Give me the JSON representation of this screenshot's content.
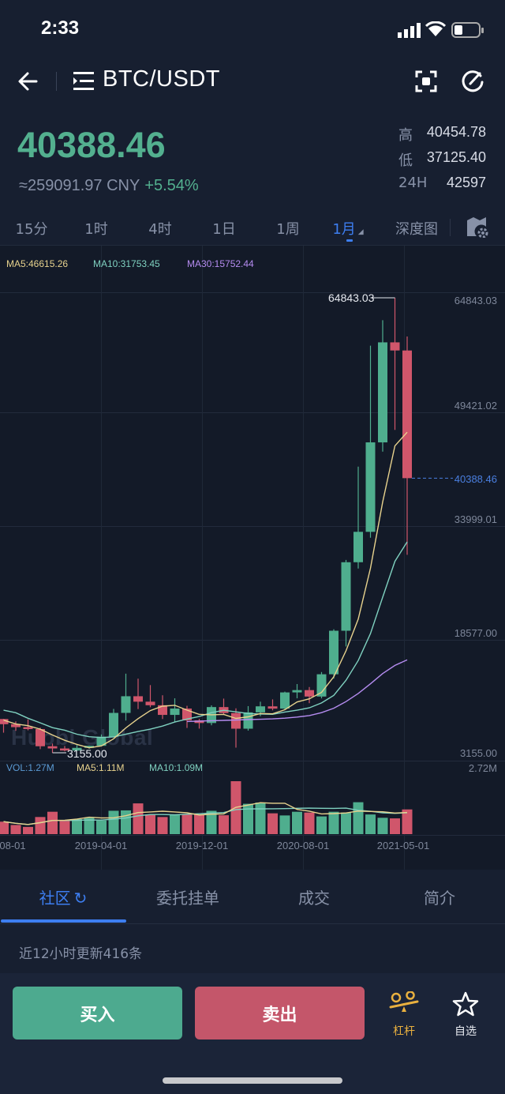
{
  "status_bar": {
    "time": "2:33"
  },
  "header": {
    "title": "BTC/USDT"
  },
  "ticker": {
    "last_price": "40388.46",
    "cny_value": "≈259091.97 CNY",
    "change_pct": "+5.54%",
    "high_label": "高",
    "high_value": "40454.78",
    "low_label": "低",
    "low_value": "37125.40",
    "vol_label": "24H",
    "vol_value": "42597"
  },
  "timeframes": {
    "items": [
      "15分",
      "1时",
      "4时",
      "1日",
      "1周",
      "1月",
      "深度图"
    ],
    "active": "1月"
  },
  "chart_legend": {
    "ma5": "MA5:46615.26",
    "ma10": "MA10:31753.45",
    "ma30": "MA30:15752.44"
  },
  "volume_legend": {
    "vol": "VOL:1.27M",
    "ma5": "MA5:1.11M",
    "ma10": "MA10:1.09M",
    "max": "2.72M"
  },
  "watermark": "Huobi Global",
  "colors": {
    "up": "#4fae8e",
    "down": "#d0566b",
    "ma5": "#e8d38e",
    "ma10": "#7fd1c0",
    "ma30": "#b58cf0",
    "accent": "#3d7ef0",
    "vol": "#5b9bd5",
    "leverage": "#e9b03f"
  },
  "chart_data": {
    "type": "candlestick",
    "y_ticks": [
      "64843.03",
      "49421.02",
      "33999.01",
      "18577.00",
      "3155.00"
    ],
    "ylim": [
      3155,
      64843.03
    ],
    "x_tick_labels": [
      "08-01",
      "2019-04-01",
      "2019-12-01",
      "2020-08-01",
      "2021-05-01"
    ],
    "high_marker": "64843.03",
    "low_marker": "3155.00",
    "current_price_label": "40388.46",
    "ohlc": [
      [
        7730,
        7750,
        5880,
        7030
      ],
      [
        7030,
        7410,
        6130,
        6630
      ],
      [
        6630,
        7680,
        6200,
        6370
      ],
      [
        6370,
        6560,
        3650,
        4040
      ],
      [
        4040,
        4400,
        3155,
        3740
      ],
      [
        3740,
        4080,
        3350,
        3460
      ],
      [
        3460,
        4200,
        3400,
        3820
      ],
      [
        3820,
        4130,
        3700,
        4100
      ],
      [
        4100,
        5640,
        4050,
        5330
      ],
      [
        5330,
        9100,
        5330,
        8560
      ],
      [
        8560,
        13880,
        7520,
        10820
      ],
      [
        10820,
        13200,
        9080,
        10080
      ],
      [
        10080,
        12330,
        9330,
        9600
      ],
      [
        9600,
        10950,
        7730,
        8290
      ],
      [
        8290,
        10540,
        7300,
        9150
      ],
      [
        9150,
        9520,
        6520,
        7550
      ],
      [
        7550,
        7750,
        6430,
        7190
      ],
      [
        7190,
        9580,
        6880,
        9350
      ],
      [
        9350,
        10500,
        8400,
        8540
      ],
      [
        8540,
        9180,
        3850,
        6420
      ],
      [
        6420,
        9480,
        6160,
        8630
      ],
      [
        8630,
        10080,
        8110,
        9450
      ],
      [
        9450,
        10390,
        8910,
        9140
      ],
      [
        9140,
        11440,
        8970,
        11340
      ],
      [
        11340,
        12470,
        10540,
        11650
      ],
      [
        11650,
        12070,
        9880,
        10780
      ],
      [
        10780,
        14100,
        10530,
        13800
      ],
      [
        13800,
        19900,
        13210,
        19700
      ],
      [
        19700,
        29300,
        17570,
        28990
      ],
      [
        28990,
        41950,
        28130,
        33110
      ],
      [
        33110,
        58350,
        32310,
        45240
      ],
      [
        45240,
        61800,
        43990,
        58800
      ],
      [
        58800,
        64843.03,
        46930,
        57700
      ],
      [
        57700,
        59600,
        30000,
        40388.46
      ]
    ],
    "ma5": [
      7578,
      7056,
      6830,
      6360,
      5562,
      4848,
      4286,
      3832,
      4090,
      5054,
      6526,
      7778,
      8878,
      9470,
      9588,
      8934,
      8356,
      8306,
      8356,
      7810,
      8026,
      8478,
      8436,
      8996,
      10042,
      10472,
      11342,
      13454,
      16984,
      21276,
      28168,
      37168,
      44768,
      46615
    ],
    "ma10": [
      8923,
      8586,
      7837,
      7219,
      6560,
      6213,
      5671,
      5331,
      5225,
      5308,
      5687,
      6032,
      6355,
      6780,
      7321,
      7730,
      8067,
      8592,
      8913,
      8699,
      8480,
      8417,
      8371,
      8676,
      8926,
      9249,
      9910,
      10945,
      12990,
      15659,
      19320,
      24255,
      29111,
      31753
    ],
    "ma30": [
      null,
      null,
      null,
      null,
      null,
      null,
      null,
      null,
      null,
      null,
      null,
      null,
      null,
      null,
      null,
      7400,
      7450,
      7500,
      7550,
      7600,
      7650,
      7700,
      7750,
      7850,
      8000,
      8200,
      8600,
      9200,
      10100,
      11200,
      12500,
      13900,
      15000,
      15752
    ],
    "volume_m": [
      0.64,
      0.47,
      0.37,
      0.88,
      1.15,
      0.7,
      0.77,
      0.84,
      0.7,
      1.2,
      1.22,
      1.58,
      1.01,
      0.88,
      1.01,
      1.01,
      1.01,
      1.2,
      0.97,
      2.72,
      1.56,
      1.62,
      1.07,
      0.96,
      1.15,
      1.11,
      0.91,
      1.15,
      1.11,
      1.64,
      1.01,
      0.84,
      0.81,
      1.27
    ],
    "volume_max_m": 2.72
  },
  "bottom_tabs": {
    "items": [
      "社区",
      "委托挂单",
      "成交",
      "简介"
    ],
    "active": "社区"
  },
  "community": {
    "update_text": "近12小时更新416条"
  },
  "actions": {
    "buy": "买入",
    "sell": "卖出",
    "leverage": "杠杆",
    "favorite": "自选"
  }
}
